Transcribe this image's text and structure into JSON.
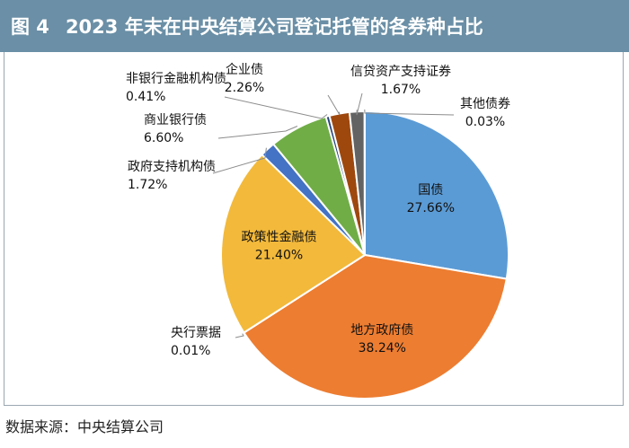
{
  "header": {
    "figure_no": "图 4",
    "title": "2023 年末在中央结算公司登记托管的各券种占比"
  },
  "source": {
    "label": "数据来源：",
    "text": "中央结算公司"
  },
  "chart_data": {
    "type": "pie",
    "title": "2023 年末在中央结算公司登记托管的各券种占比",
    "start_angle_deg": 0,
    "direction": "clockwise",
    "slices": [
      {
        "name": "国债",
        "value": 27.66,
        "label": "27.66%",
        "color": "#5b9bd5",
        "label_inside": true
      },
      {
        "name": "地方政府债",
        "value": 38.24,
        "label": "38.24%",
        "color": "#ed7d31",
        "label_inside": true
      },
      {
        "name": "央行票据",
        "value": 0.01,
        "label": "0.01%",
        "color": "#a5a5a5",
        "label_inside": false
      },
      {
        "name": "政策性金融债",
        "value": 21.4,
        "label": "21.40%",
        "color": "#f2b93b",
        "label_inside": true
      },
      {
        "name": "政府支持机构债",
        "value": 1.72,
        "label": "1.72%",
        "color": "#4472c4",
        "label_inside": false
      },
      {
        "name": "商业银行债",
        "value": 6.6,
        "label": "6.60%",
        "color": "#70ad47",
        "label_inside": false
      },
      {
        "name": "非银行金融机构债",
        "value": 0.41,
        "label": "0.41%",
        "color": "#264478",
        "label_inside": false
      },
      {
        "name": "企业债",
        "value": 2.26,
        "label": "2.26%",
        "color": "#9e480e",
        "label_inside": false
      },
      {
        "name": "信贷资产支持证券",
        "value": 1.67,
        "label": "1.67%",
        "color": "#636363",
        "label_inside": false
      },
      {
        "name": "其他债券",
        "value": 0.03,
        "label": "0.03%",
        "color": "#997300",
        "label_inside": false
      }
    ]
  }
}
